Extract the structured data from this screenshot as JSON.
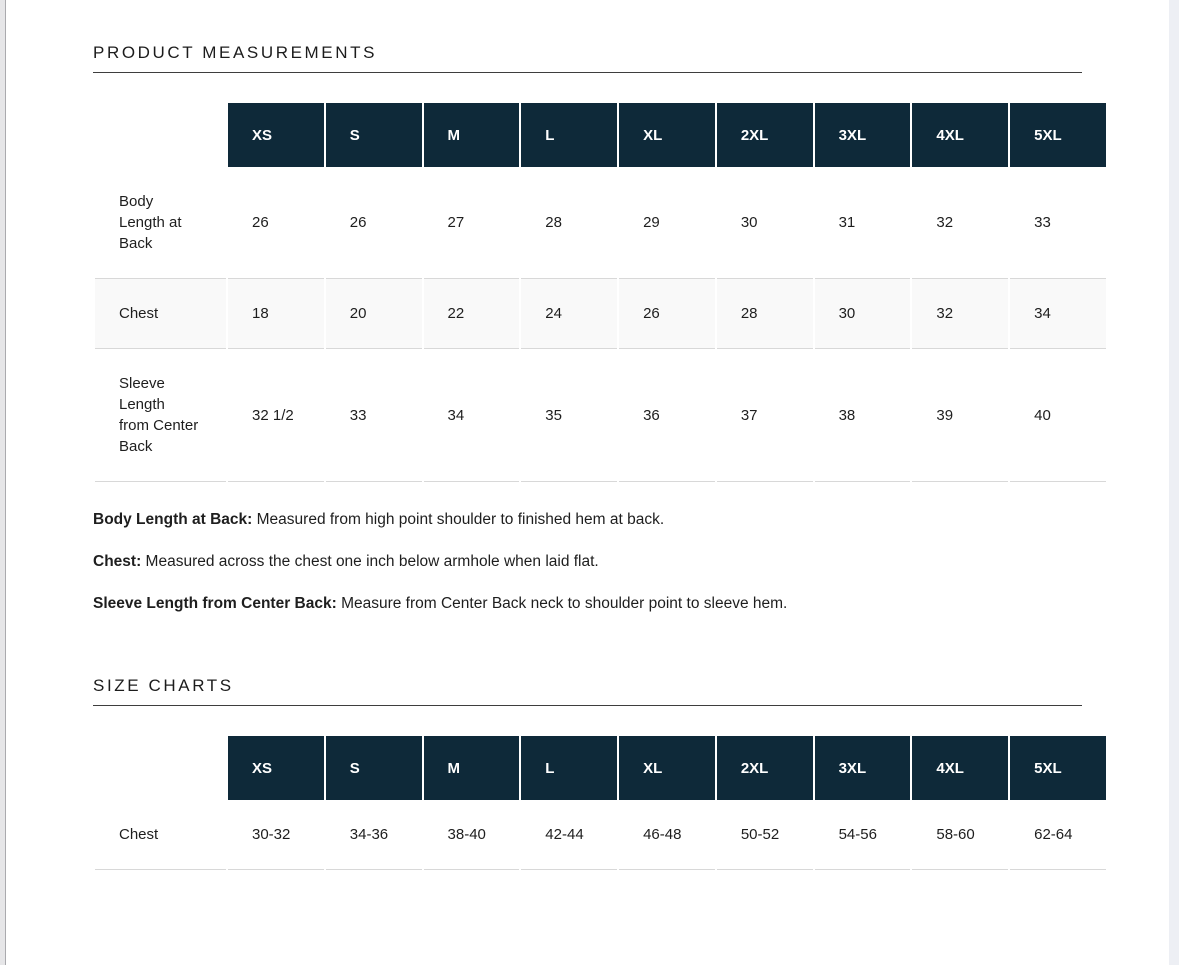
{
  "product_measurements": {
    "title": "PRODUCT MEASUREMENTS",
    "table": {
      "columns": [
        "XS",
        "S",
        "M",
        "L",
        "XL",
        "2XL",
        "3XL",
        "4XL",
        "5XL"
      ],
      "rows": [
        {
          "label": "Body Length at Back",
          "values": [
            "26",
            "26",
            "27",
            "28",
            "29",
            "30",
            "31",
            "32",
            "33"
          ]
        },
        {
          "label": "Chest",
          "values": [
            "18",
            "20",
            "22",
            "24",
            "26",
            "28",
            "30",
            "32",
            "34"
          ]
        },
        {
          "label": "Sleeve Length from Center Back",
          "values": [
            "32 1/2",
            "33",
            "34",
            "35",
            "36",
            "37",
            "38",
            "39",
            "40"
          ]
        }
      ]
    },
    "definitions": [
      {
        "term": "Body Length at Back:",
        "text": " Measured from high point shoulder to finished hem at back."
      },
      {
        "term": "Chest:",
        "text": " Measured across the chest one inch below armhole when laid flat."
      },
      {
        "term": "Sleeve Length from Center Back:",
        "text": " Measure from Center Back neck to shoulder point to sleeve hem."
      }
    ]
  },
  "size_charts": {
    "title": "SIZE CHARTS",
    "table": {
      "columns": [
        "XS",
        "S",
        "M",
        "L",
        "XL",
        "2XL",
        "3XL",
        "4XL",
        "5XL"
      ],
      "rows": [
        {
          "label": "Chest",
          "values": [
            "30-32",
            "34-36",
            "38-40",
            "42-44",
            "46-48",
            "50-52",
            "54-56",
            "58-60",
            "62-64"
          ]
        }
      ]
    }
  },
  "colors": {
    "header_bg": "#0e2939",
    "header_text": "#ffffff",
    "row_alt_bg": "#f9f9f9",
    "cell_border": "#d8d8d8",
    "heading_underline": "#3e3e3e",
    "text": "#1e1e1e"
  }
}
